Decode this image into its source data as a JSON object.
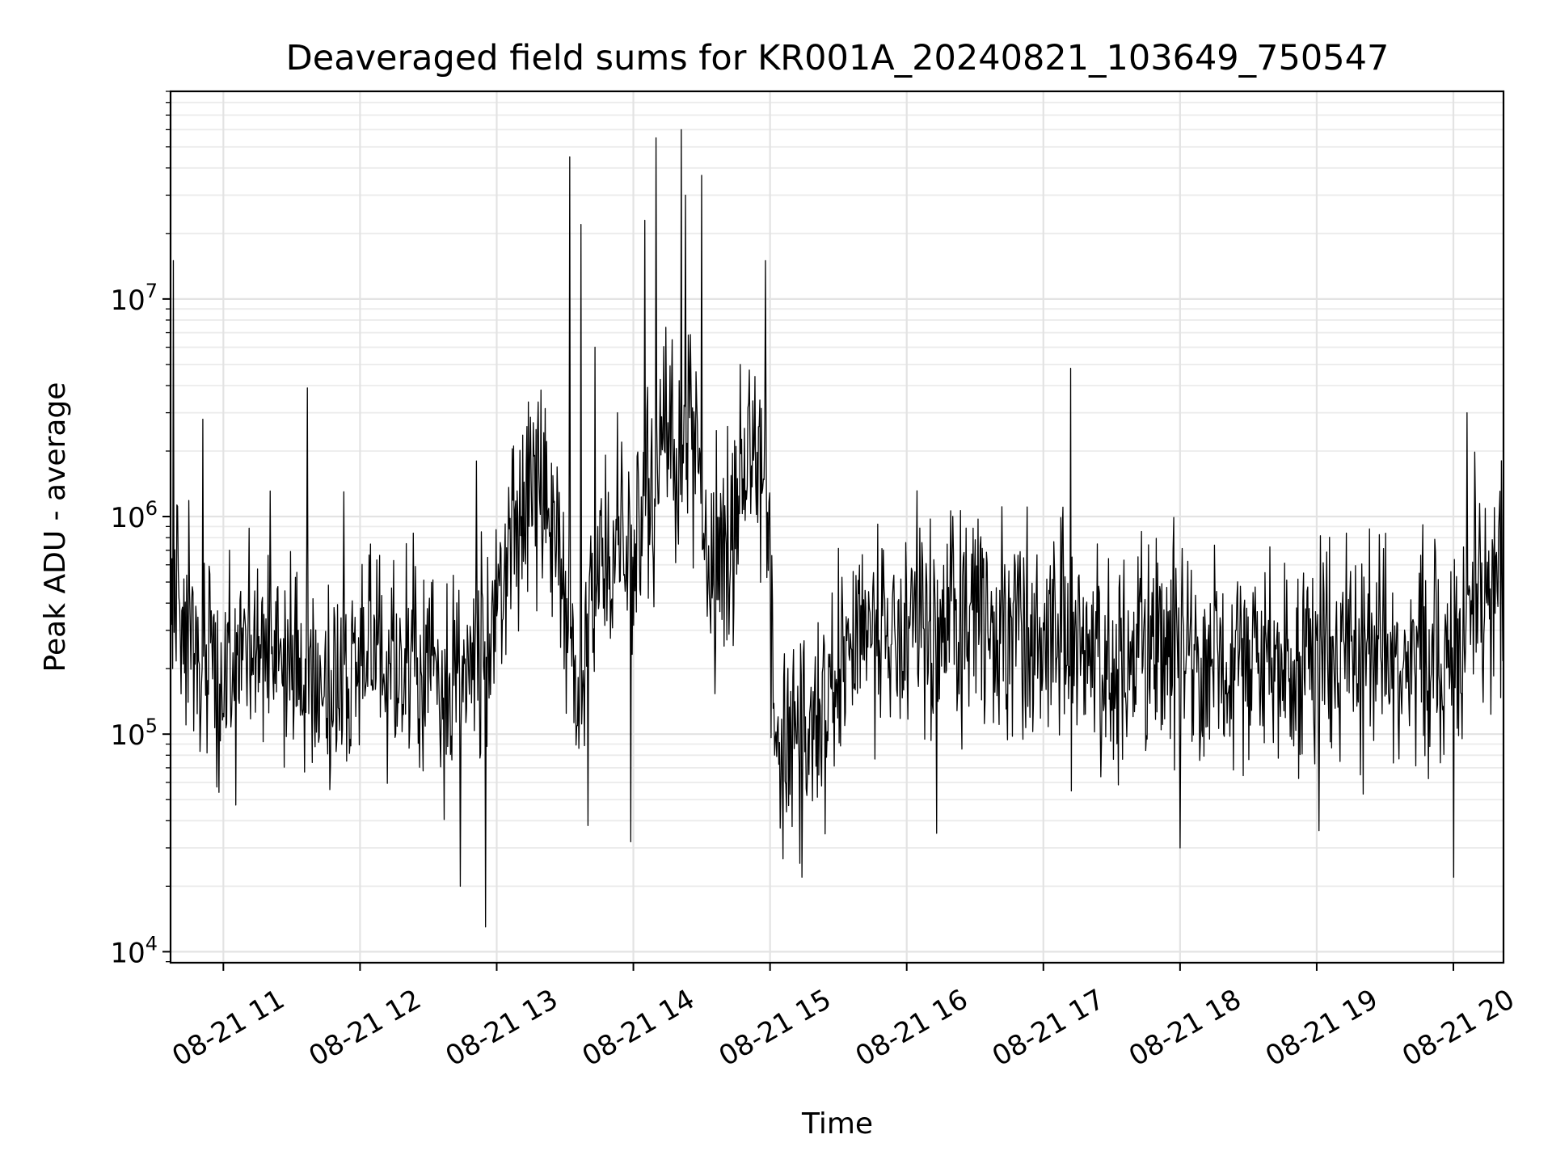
{
  "chart_data": {
    "type": "line",
    "title": "Deaveraged field sums for KR001A_20240821_103649_750547",
    "xlabel": "Time",
    "ylabel": "Peak ADU - average",
    "x_axis": {
      "kind": "time",
      "range": [
        "2024-08-21 10:36:49",
        "2024-08-21 20:22:00"
      ],
      "tick_values": [
        "2024-08-21 11:00",
        "2024-08-21 12:00",
        "2024-08-21 13:00",
        "2024-08-21 14:00",
        "2024-08-21 15:00",
        "2024-08-21 16:00",
        "2024-08-21 17:00",
        "2024-08-21 18:00",
        "2024-08-21 19:00",
        "2024-08-21 20:00"
      ],
      "tick_labels": [
        "08-21 11",
        "08-21 12",
        "08-21 13",
        "08-21 14",
        "08-21 15",
        "08-21 16",
        "08-21 17",
        "08-21 18",
        "08-21 19",
        "08-21 20"
      ],
      "tick_rotation_deg": 30
    },
    "y_axis": {
      "scale": "log",
      "ylim": [
        8900,
        90000000
      ],
      "tick_values": [
        10000,
        100000,
        1000000,
        10000000
      ],
      "tick_labels": [
        {
          "base": "10",
          "exponent": "4"
        },
        {
          "base": "10",
          "exponent": "5"
        },
        {
          "base": "10",
          "exponent": "6"
        },
        {
          "base": "10",
          "exponent": "7"
        }
      ]
    },
    "grid": {
      "major": true,
      "minor": true
    },
    "series": [
      {
        "color": "#000000",
        "style": "line",
        "anchors": [
          [
            "2024-08-21 10:36:49",
            380000
          ],
          [
            "2024-08-21 10:50",
            250000
          ],
          [
            "2024-08-21 11:00",
            170000
          ],
          [
            "2024-08-21 11:12",
            300000
          ],
          [
            "2024-08-21 11:25",
            240000
          ],
          [
            "2024-08-21 11:40",
            150000
          ],
          [
            "2024-08-21 12:00",
            200000
          ],
          [
            "2024-08-21 12:20",
            230000
          ],
          [
            "2024-08-21 12:40",
            190000
          ],
          [
            "2024-08-21 12:55",
            240000
          ],
          [
            "2024-08-21 13:05",
            650000
          ],
          [
            "2024-08-21 13:15",
            1200000
          ],
          [
            "2024-08-21 13:27",
            800000
          ],
          [
            "2024-08-21 13:36",
            120000
          ],
          [
            "2024-08-21 13:45",
            700000
          ],
          [
            "2024-08-21 13:55",
            500000
          ],
          [
            "2024-08-21 14:10",
            1800000
          ],
          [
            "2024-08-21 14:25",
            2000000
          ],
          [
            "2024-08-21 14:35",
            600000
          ],
          [
            "2024-08-21 14:45",
            1000000
          ],
          [
            "2024-08-21 14:57",
            2000000
          ],
          [
            "2024-08-21 15:03",
            90000
          ],
          [
            "2024-08-21 15:18",
            110000
          ],
          [
            "2024-08-21 15:35",
            240000
          ],
          [
            "2024-08-21 16:00",
            300000
          ],
          [
            "2024-08-21 16:25",
            400000
          ],
          [
            "2024-08-21 16:40",
            350000
          ],
          [
            "2024-08-21 17:00",
            280000
          ],
          [
            "2024-08-21 17:30",
            220000
          ],
          [
            "2024-08-21 18:00",
            240000
          ],
          [
            "2024-08-21 18:30",
            210000
          ],
          [
            "2024-08-21 19:00",
            230000
          ],
          [
            "2024-08-21 19:30",
            220000
          ],
          [
            "2024-08-21 19:55",
            210000
          ],
          [
            "2024-08-21 20:10",
            500000
          ],
          [
            "2024-08-21 20:22",
            550000
          ]
        ],
        "spikes": [
          [
            "2024-08-21 10:38",
            15000000
          ],
          [
            "2024-08-21 10:51",
            2800000
          ],
          [
            "2024-08-21 11:37",
            3900000
          ],
          [
            "2024-08-21 11:53",
            1300000
          ],
          [
            "2024-08-21 12:44",
            20000
          ],
          [
            "2024-08-21 12:51",
            1800000
          ],
          [
            "2024-08-21 12:55",
            13000
          ],
          [
            "2024-08-21 13:16",
            2700000
          ],
          [
            "2024-08-21 13:32",
            45000000
          ],
          [
            "2024-08-21 13:37",
            22000000
          ],
          [
            "2024-08-21 13:40",
            38000
          ],
          [
            "2024-08-21 13:43",
            6000000
          ],
          [
            "2024-08-21 13:53",
            3000000
          ],
          [
            "2024-08-21 13:59",
            32000
          ],
          [
            "2024-08-21 14:05",
            23000000
          ],
          [
            "2024-08-21 14:10",
            55000000
          ],
          [
            "2024-08-21 14:17",
            6500000
          ],
          [
            "2024-08-21 14:21",
            60000000
          ],
          [
            "2024-08-21 14:23",
            30000000
          ],
          [
            "2024-08-21 14:30",
            37000000
          ],
          [
            "2024-08-21 14:47",
            5000000
          ],
          [
            "2024-08-21 14:58",
            15000000
          ],
          [
            "2024-08-21 15:14",
            22000
          ],
          [
            "2024-08-21 16:13",
            35000
          ],
          [
            "2024-08-21 17:12",
            4800000
          ],
          [
            "2024-08-21 18:00",
            30000
          ],
          [
            "2024-08-21 19:01",
            36000
          ],
          [
            "2024-08-21 20:00",
            22000
          ],
          [
            "2024-08-21 20:06",
            3000000
          ]
        ]
      }
    ]
  }
}
